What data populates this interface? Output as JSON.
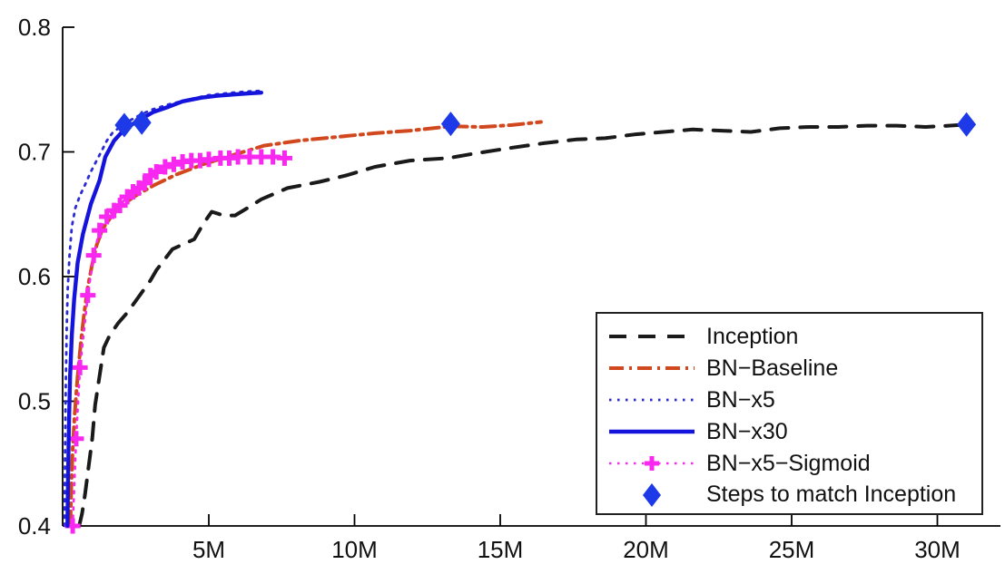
{
  "colors": {
    "inception": "#1a1a1a",
    "bn_baseline": "#d2481e",
    "bn_x5": "#2a2ad4",
    "bn_x30": "#1414dd",
    "bn_x5_sigmoid": "#f928f0",
    "diamond": "#1d39e8",
    "axis": "#000000",
    "legend_border": "#222222",
    "background": "#ffffff"
  },
  "legend": {
    "items": [
      {
        "label": "Inception",
        "swatch": "dash",
        "color_key": "inception"
      },
      {
        "label": "BN−Baseline",
        "swatch": "dashdot",
        "color_key": "bn_baseline"
      },
      {
        "label": "BN−x5",
        "swatch": "dot",
        "color_key": "bn_x5"
      },
      {
        "label": "BN−x30",
        "swatch": "solid",
        "color_key": "bn_x30"
      },
      {
        "label": "BN−x5−Sigmoid",
        "swatch": "dotplus",
        "color_key": "bn_x5_sigmoid"
      },
      {
        "label": "Steps to match Inception",
        "swatch": "diamond",
        "color_key": "diamond"
      }
    ]
  },
  "chart_data": {
    "type": "line",
    "title": "",
    "xlabel": "",
    "ylabel": "",
    "xlim": [
      0,
      32.2
    ],
    "ylim": [
      0.4,
      0.8
    ],
    "x_unit": "millions of training steps",
    "grid": false,
    "legend_position": "lower right",
    "x_ticks": [
      5,
      10,
      15,
      20,
      25,
      30
    ],
    "x_tick_labels": [
      "5M",
      "10M",
      "15M",
      "20M",
      "25M",
      "30M"
    ],
    "y_ticks": [
      0.4,
      0.5,
      0.6,
      0.7,
      0.8
    ],
    "y_tick_labels": [
      "0.4",
      "0.5",
      "0.6",
      "0.7",
      "0.8"
    ],
    "series": [
      {
        "name": "Inception",
        "style": "dash",
        "color_key": "inception",
        "points": [
          [
            0.55,
            0.4
          ],
          [
            0.65,
            0.41
          ],
          [
            0.75,
            0.425
          ],
          [
            0.85,
            0.443
          ],
          [
            1.0,
            0.47
          ],
          [
            1.1,
            0.497
          ],
          [
            1.25,
            0.52
          ],
          [
            1.4,
            0.543
          ],
          [
            1.6,
            0.553
          ],
          [
            1.9,
            0.563
          ],
          [
            2.2,
            0.571
          ],
          [
            2.6,
            0.584
          ],
          [
            3.0,
            0.597
          ],
          [
            3.2,
            0.605
          ],
          [
            3.75,
            0.622
          ],
          [
            4.5,
            0.63
          ],
          [
            4.8,
            0.642
          ],
          [
            5.1,
            0.652
          ],
          [
            5.5,
            0.649
          ],
          [
            5.9,
            0.649
          ],
          [
            6.4,
            0.656
          ],
          [
            6.8,
            0.662
          ],
          [
            7.7,
            0.671
          ],
          [
            8.8,
            0.676
          ],
          [
            9.7,
            0.681
          ],
          [
            10.7,
            0.688
          ],
          [
            11.9,
            0.693
          ],
          [
            13.2,
            0.695
          ],
          [
            14.2,
            0.699
          ],
          [
            15.3,
            0.703
          ],
          [
            16.5,
            0.707
          ],
          [
            17.6,
            0.71
          ],
          [
            18.6,
            0.711
          ],
          [
            19.6,
            0.714
          ],
          [
            20.6,
            0.716
          ],
          [
            21.6,
            0.718
          ],
          [
            22.6,
            0.717
          ],
          [
            23.6,
            0.716
          ],
          [
            24.6,
            0.719
          ],
          [
            25.6,
            0.72
          ],
          [
            26.6,
            0.72
          ],
          [
            27.6,
            0.721
          ],
          [
            28.6,
            0.721
          ],
          [
            29.6,
            0.72
          ],
          [
            30.4,
            0.721
          ],
          [
            31.0,
            0.722
          ]
        ]
      },
      {
        "name": "BN-Baseline",
        "style": "dashdot",
        "color_key": "bn_baseline",
        "points": [
          [
            0.25,
            0.4
          ],
          [
            0.28,
            0.43
          ],
          [
            0.33,
            0.462
          ],
          [
            0.4,
            0.49
          ],
          [
            0.5,
            0.52
          ],
          [
            0.6,
            0.545
          ],
          [
            0.72,
            0.57
          ],
          [
            0.85,
            0.592
          ],
          [
            1.0,
            0.61
          ],
          [
            1.15,
            0.625
          ],
          [
            1.35,
            0.638
          ],
          [
            1.65,
            0.648
          ],
          [
            2.0,
            0.657
          ],
          [
            2.5,
            0.665
          ],
          [
            3.1,
            0.673
          ],
          [
            3.9,
            0.682
          ],
          [
            4.8,
            0.69
          ],
          [
            5.9,
            0.698
          ],
          [
            6.9,
            0.705
          ],
          [
            8.1,
            0.709
          ],
          [
            9.4,
            0.712
          ],
          [
            10.7,
            0.715
          ],
          [
            11.9,
            0.717
          ],
          [
            13.3,
            0.7205
          ],
          [
            14.4,
            0.72
          ],
          [
            15.4,
            0.7215
          ],
          [
            16.4,
            0.724
          ]
        ]
      },
      {
        "name": "BN-x5",
        "style": "dot",
        "color_key": "bn_x5",
        "points": [
          [
            0.05,
            0.4
          ],
          [
            0.07,
            0.46
          ],
          [
            0.09,
            0.51
          ],
          [
            0.12,
            0.556
          ],
          [
            0.16,
            0.59
          ],
          [
            0.22,
            0.617
          ],
          [
            0.3,
            0.64
          ],
          [
            0.42,
            0.655
          ],
          [
            0.58,
            0.665
          ],
          [
            0.76,
            0.674
          ],
          [
            0.95,
            0.684
          ],
          [
            1.15,
            0.693
          ],
          [
            1.35,
            0.702
          ],
          [
            1.5,
            0.709
          ],
          [
            1.7,
            0.7155
          ],
          [
            2.1,
            0.7225
          ],
          [
            2.5,
            0.728
          ],
          [
            3.0,
            0.7335
          ],
          [
            3.6,
            0.738
          ],
          [
            4.3,
            0.742
          ],
          [
            5.0,
            0.7455
          ],
          [
            5.8,
            0.7475
          ],
          [
            6.5,
            0.7487
          ],
          [
            6.9,
            0.749
          ]
        ]
      },
      {
        "name": "BN-x30",
        "style": "solid",
        "color_key": "bn_x30",
        "points": [
          [
            0.15,
            0.4
          ],
          [
            0.17,
            0.44
          ],
          [
            0.2,
            0.48
          ],
          [
            0.24,
            0.52
          ],
          [
            0.3,
            0.553
          ],
          [
            0.38,
            0.582
          ],
          [
            0.5,
            0.611
          ],
          [
            0.68,
            0.634
          ],
          [
            0.95,
            0.658
          ],
          [
            1.25,
            0.677
          ],
          [
            1.45,
            0.696
          ],
          [
            1.75,
            0.709
          ],
          [
            2.1,
            0.718
          ],
          [
            2.6,
            0.7255
          ],
          [
            3.1,
            0.732
          ],
          [
            3.6,
            0.736
          ],
          [
            4.1,
            0.7405
          ],
          [
            4.75,
            0.7435
          ],
          [
            5.3,
            0.745
          ],
          [
            5.8,
            0.746
          ],
          [
            6.4,
            0.747
          ],
          [
            6.8,
            0.7475
          ]
        ]
      },
      {
        "name": "BN-x5-Sigmoid",
        "style": "dotplus",
        "color_key": "bn_x5_sigmoid",
        "points": [
          [
            0.33,
            0.4
          ],
          [
            0.45,
            0.47
          ],
          [
            0.58,
            0.527
          ],
          [
            0.85,
            0.585
          ],
          [
            1.05,
            0.617
          ],
          [
            1.25,
            0.637
          ],
          [
            1.5,
            0.648
          ],
          [
            1.75,
            0.653
          ],
          [
            1.95,
            0.657
          ],
          [
            2.2,
            0.664
          ],
          [
            2.4,
            0.668
          ],
          [
            2.6,
            0.671
          ],
          [
            2.8,
            0.675
          ],
          [
            3.0,
            0.681
          ],
          [
            3.2,
            0.684
          ],
          [
            3.5,
            0.688
          ],
          [
            3.8,
            0.69
          ],
          [
            4.1,
            0.692
          ],
          [
            4.4,
            0.693
          ],
          [
            4.7,
            0.693
          ],
          [
            5.0,
            0.694
          ],
          [
            5.4,
            0.695
          ],
          [
            5.7,
            0.695
          ],
          [
            6.0,
            0.696
          ],
          [
            6.4,
            0.696
          ],
          [
            6.8,
            0.696
          ],
          [
            7.2,
            0.696
          ],
          [
            7.6,
            0.695
          ]
        ]
      },
      {
        "name": "Steps to match Inception",
        "style": "diamond",
        "color_key": "diamond",
        "points": [
          [
            2.1,
            0.7215
          ],
          [
            2.7,
            0.7235
          ],
          [
            13.3,
            0.7225
          ],
          [
            31.0,
            0.722
          ]
        ]
      }
    ]
  }
}
